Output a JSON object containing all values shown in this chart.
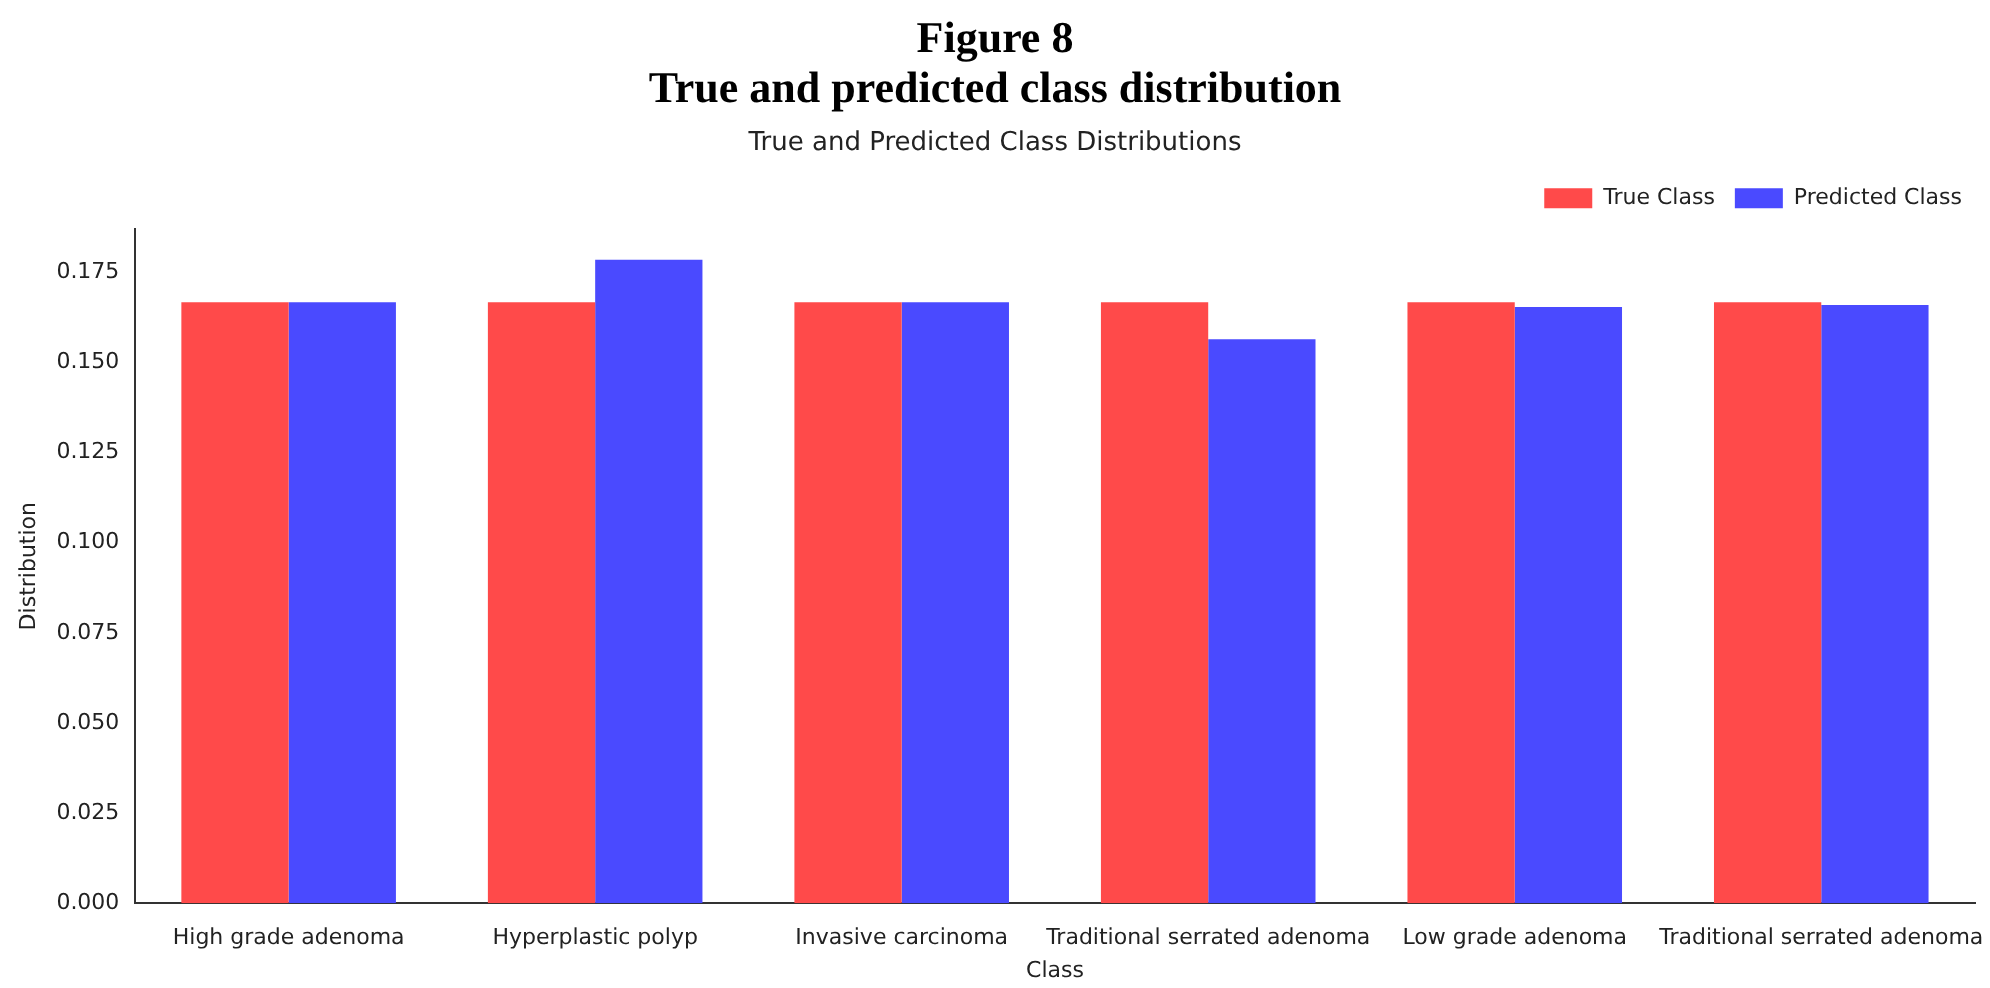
{
  "chart_data": {
    "type": "bar",
    "title": "True and Predicted Class Distributions",
    "xlabel": "Class",
    "ylabel": "Distribution",
    "annotations": [
      "Figure 8",
      "True and predicted class distribution"
    ],
    "categories": [
      "High grade adenoma",
      "Hyperplastic polyp",
      "Invasive carcinoma",
      "Traditional serrated adenoma",
      "Low grade adenoma",
      "Traditional serrated adenoma"
    ],
    "series": [
      {
        "name": "True Class",
        "color": "#ff4a4a",
        "values": [
          0.1667,
          0.1667,
          0.1667,
          0.1667,
          0.1667,
          0.1667
        ]
      },
      {
        "name": "Predicted Class",
        "color": "#4a4aff",
        "values": [
          0.1667,
          0.1785,
          0.1667,
          0.1565,
          0.1654,
          0.166
        ]
      }
    ],
    "ylim": [
      0,
      0.187
    ],
    "yticks": [
      {
        "value": 0,
        "label": "0.000"
      },
      0.025,
      {
        "value": 0.05,
        "label": "0.050"
      },
      0.075,
      {
        "value": 0.1,
        "label": "0.100"
      },
      0.125,
      {
        "value": 0.15,
        "label": "0.150"
      },
      0.175
    ],
    "grid": false,
    "legend": "top right"
  }
}
